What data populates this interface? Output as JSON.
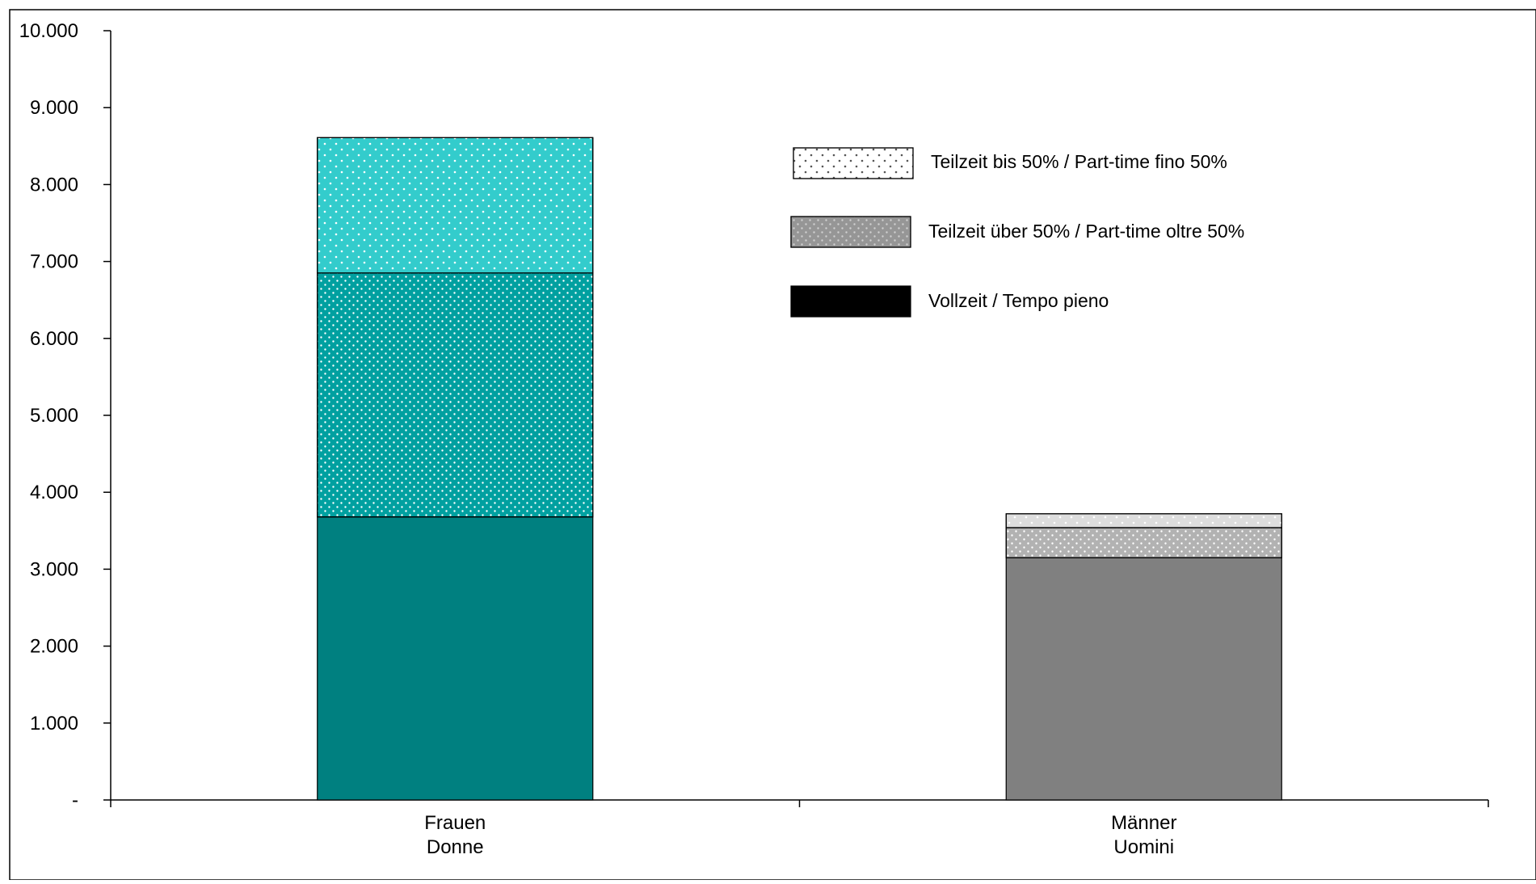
{
  "chart_data": {
    "type": "bar",
    "stacked": true,
    "title": "",
    "xlabel": "",
    "ylabel": "",
    "ylim": [
      0,
      10000
    ],
    "yticks": [
      0,
      1000,
      2000,
      3000,
      4000,
      5000,
      6000,
      7000,
      8000,
      9000,
      10000
    ],
    "ytick_labels": [
      "-",
      "1.000",
      "2.000",
      "3.000",
      "4.000",
      "5.000",
      "6.000",
      "7.000",
      "8.000",
      "9.000",
      "10.000"
    ],
    "grid": false,
    "legend_position": "top-right",
    "categories": [
      {
        "line1": "Frauen",
        "line2": "Donne"
      },
      {
        "line1": "Männer",
        "line2": "Uomini"
      }
    ],
    "series": [
      {
        "name": "Vollzeit / Tempo pieno",
        "pattern": "solid",
        "values": [
          3680,
          3150
        ]
      },
      {
        "name": "Teilzeit über 50% / Part-time oltre 50%",
        "pattern": "dense-dots",
        "values": [
          3170,
          390
        ]
      },
      {
        "name": "Teilzeit bis 50% / Part-time fino 50%",
        "pattern": "sparse-dots",
        "values": [
          1760,
          180
        ]
      }
    ],
    "category_colors": [
      [
        "#008080",
        "#00a0a0",
        "#33cccc"
      ],
      [
        "#808080",
        "#b2b2b2",
        "#dddddd"
      ]
    ],
    "legend_colors": [
      "#000000",
      "#969696",
      "#ffffff"
    ]
  }
}
